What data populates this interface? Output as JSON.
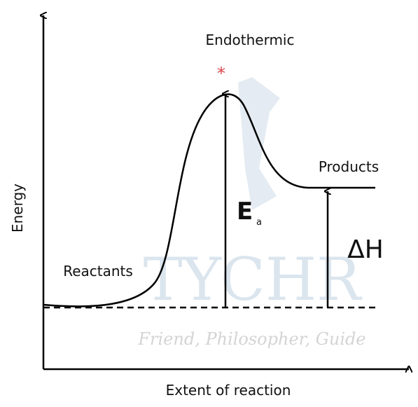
{
  "diagram": {
    "title": "Endothermic",
    "peak_marker": "*",
    "products_label": "Products",
    "reactants_label": "Reactants",
    "activation_energy": {
      "symbol": "E",
      "subscript": "a"
    },
    "enthalpy_change": "ΔH",
    "y_axis_label": "Energy",
    "x_axis_label": "Extent of reaction",
    "watermark": {
      "brand": "TYCHR",
      "tagline": "Friend, Philosopher, Guide"
    }
  }
}
